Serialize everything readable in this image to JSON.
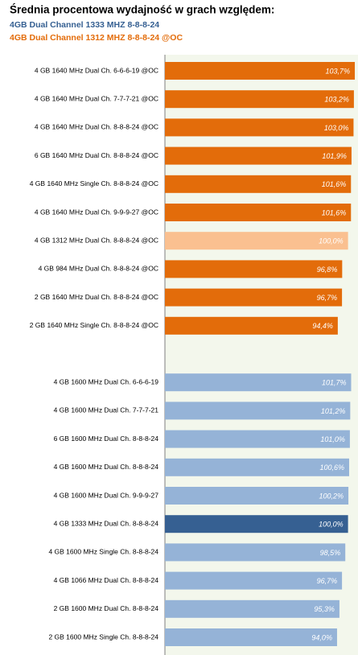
{
  "chart_data": {
    "type": "bar",
    "orientation": "horizontal",
    "title": "Średnia procentowa wydajność  w grach względem:",
    "subtitle": [
      "4GB Dual Channel 1333 MHZ  8-8-8-24",
      "4GB Dual Channel 1312 MHZ  8-8-8-24 @OC"
    ],
    "subtitle_colors": [
      "#366092",
      "#e36c0a"
    ],
    "categories": [
      "4 GB 1640 MHz Dual Ch. 6-6-6-19 @OC",
      "4 GB 1640 MHz Dual Ch. 7-7-7-21 @OC",
      "4 GB 1640 MHz Dual Ch. 8-8-8-24 @OC",
      "6 GB 1640 MHz Dual Ch. 8-8-8-24 @OC",
      "4 GB 1640 MHz Single Ch. 8-8-8-24 @OC",
      "4 GB 1640 MHz Dual Ch. 9-9-9-27 @OC",
      "4 GB 1312 MHz Dual Ch. 8-8-8-24 @OC",
      "4 GB 984 MHz Dual Ch. 8-8-8-24 @OC",
      "2 GB 1640 MHz Dual Ch. 8-8-8-24 @OC",
      "2 GB 1640 MHz Single Ch. 8-8-8-24 @OC",
      null,
      "4 GB 1600 MHz Dual Ch. 6-6-6-19",
      "4 GB 1600 MHz Dual Ch. 7-7-7-21",
      "6 GB 1600 MHz Dual Ch. 8-8-8-24",
      "4 GB 1600 MHz Dual Ch. 8-8-8-24",
      "4 GB 1600 MHz Dual Ch. 9-9-9-27",
      "4 GB 1333 MHz Dual Ch. 8-8-8-24",
      "4 GB 1600 MHz Single Ch. 8-8-8-24",
      "4 GB 1066 MHz Dual Ch. 8-8-8-24",
      "2 GB 1600 MHz Dual Ch. 8-8-8-24",
      "2 GB 1600 MHz Single Ch. 8-8-8-24"
    ],
    "values": [
      103.7,
      103.2,
      103.0,
      101.9,
      101.6,
      101.6,
      100.0,
      96.8,
      96.7,
      94.4,
      null,
      101.7,
      101.2,
      101.0,
      100.6,
      100.2,
      100.0,
      98.5,
      96.7,
      95.3,
      94.0
    ],
    "value_labels": [
      "103,7%",
      "103,2%",
      "103,0%",
      "101,9%",
      "101,6%",
      "101,6%",
      "100,0%",
      "96,8%",
      "96,7%",
      "94,4%",
      null,
      "101,7%",
      "101,2%",
      "101,0%",
      "100,6%",
      "100,2%",
      "100,0%",
      "98,5%",
      "96,7%",
      "95,3%",
      "94,0%"
    ],
    "colors": [
      "#e36c0a",
      "#e36c0a",
      "#e36c0a",
      "#e36c0a",
      "#e36c0a",
      "#e36c0a",
      "#fac090",
      "#e36c0a",
      "#e36c0a",
      "#e36c0a",
      null,
      "#95b3d7",
      "#95b3d7",
      "#95b3d7",
      "#95b3d7",
      "#95b3d7",
      "#366092",
      "#95b3d7",
      "#95b3d7",
      "#95b3d7",
      "#95b3d7"
    ],
    "xlim": [
      0,
      105
    ]
  }
}
